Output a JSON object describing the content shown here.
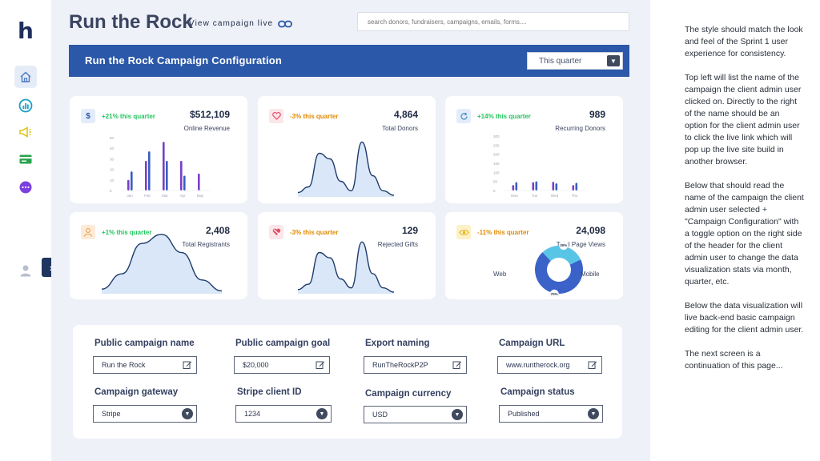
{
  "app": {
    "logo_letter": "h"
  },
  "header": {
    "campaign_name": "Run the Rock",
    "view_live_label": "View campaign live",
    "search_placeholder": "search donors, fundraisers, campaigns, emails, forms....",
    "config_title": "Run the Rock Campaign Configuration",
    "period_value": "This quarter"
  },
  "sidebar": {
    "items": [
      {
        "icon": "home-icon",
        "color": "#4a78c2"
      },
      {
        "icon": "analytics-icon",
        "color": "#1aa1c9"
      },
      {
        "icon": "megaphone-icon",
        "color": "#e1c51a"
      },
      {
        "icon": "card-icon",
        "color": "#27a34a"
      },
      {
        "icon": "more-icon",
        "color": "#7c3fe0"
      }
    ]
  },
  "colors": {
    "accent": "#2b58a8",
    "positive": "#22c55e",
    "negative": "#e08a00",
    "bar": "#3a5ec0",
    "area_fill": "#d9e7f8",
    "area_line": "#1e3a6b"
  },
  "stats": [
    {
      "icon": "dollar-icon",
      "change": "+21% this quarter",
      "value": "$512,109",
      "metric": "Online Revenue",
      "trend": "positive"
    },
    {
      "icon": "heart-icon",
      "change": "-3% this quarter",
      "value": "4,864",
      "metric": "Total Donors",
      "trend": "negative"
    },
    {
      "icon": "refresh-icon",
      "change": "+14% this quarter",
      "value": "989",
      "metric": "Recurring Donors",
      "trend": "positive"
    },
    {
      "icon": "user-icon",
      "change": "+1% this  quarter",
      "value": "2,408",
      "metric": "Total Registrants",
      "trend": "positive"
    },
    {
      "icon": "broken-heart-icon",
      "change": "-3% this quarter",
      "value": "129",
      "metric": "Rejected Gifts",
      "trend": "negative"
    },
    {
      "icon": "eye-icon",
      "change": "-11% this quarter",
      "value": "24,098",
      "metric": "Total Page Views",
      "trend": "negative"
    }
  ],
  "chart_data": [
    {
      "type": "bar",
      "categories": [
        "Jan",
        "Feb",
        "Mar",
        "Apr",
        "May"
      ],
      "series": [
        {
          "values": [
            10,
            28,
            46,
            28,
            16
          ]
        },
        {
          "values": [
            18,
            37,
            28,
            14,
            0
          ]
        }
      ],
      "yticks": [
        "50",
        "40",
        "30",
        "20",
        "10",
        "0"
      ],
      "ylim": [
        0,
        50
      ]
    },
    {
      "type": "area",
      "shape": [
        0.05,
        0.15,
        0.75,
        0.65,
        0.25,
        0.08,
        0.95,
        0.35,
        0.08,
        0.0
      ]
    },
    {
      "type": "bar",
      "categories": [
        "Mon",
        "Tue",
        "Wed",
        "Thu"
      ],
      "series": [
        {
          "values": [
            30,
            46,
            48,
            30
          ]
        },
        {
          "values": [
            46,
            50,
            39,
            42
          ]
        }
      ],
      "yticks": [
        "300",
        "250",
        "200",
        "150",
        "100",
        "50",
        "0"
      ],
      "ylim": [
        0,
        300
      ]
    },
    {
      "type": "area",
      "shape": [
        0.05,
        0.3,
        0.8,
        0.95,
        0.65,
        0.2,
        0.02
      ]
    },
    {
      "type": "area",
      "shape": [
        0.05,
        0.15,
        0.75,
        0.65,
        0.25,
        0.08,
        0.95,
        0.35,
        0.08,
        0.0
      ]
    },
    {
      "type": "pie",
      "slices": [
        {
          "label": "Mobile",
          "value": 70,
          "pct_label": "70%",
          "color": "#3a62c8"
        },
        {
          "label": "Web",
          "value": 30,
          "pct_label": "30%",
          "color": "#58c4e6"
        }
      ]
    }
  ],
  "form": {
    "fields": [
      {
        "label": "Public campaign name",
        "value": "Run the Rock",
        "kind": "text"
      },
      {
        "label": "Public campaign goal",
        "value": "$20,000",
        "kind": "text"
      },
      {
        "label": "Export naming",
        "value": "RunTheRockP2P",
        "kind": "text"
      },
      {
        "label": "Campaign URL",
        "value": "www.runtherock.org",
        "kind": "text"
      },
      {
        "label": "Campaign gateway",
        "value": "Stripe",
        "kind": "select"
      },
      {
        "label": "Stripe client ID",
        "value": "1234",
        "kind": "select"
      },
      {
        "label": "Campaign currency",
        "value": "USD",
        "kind": "select"
      },
      {
        "label": "Campaign status",
        "value": "Published",
        "kind": "select"
      }
    ]
  },
  "notes": [
    "The style should match the look and feel of the Sprint 1 user experience for consistency.",
    "Top left will list the name of the campaign the client admin user clicked on.  Directly to the right of the name should be an option for the client admin user to click the live link which will pop up the live site build in another browser.",
    "Below that should read the name of the campaign the client admin user selected + \"Campaign Configuration\" with a toggle option on the right side of the header for the client admin user to change the data visualization stats via month, quarter, etc.",
    "Below the data visualization will live back-end basic campaign editing for the client admin user.",
    "The next screen is a continuation of this page..."
  ]
}
